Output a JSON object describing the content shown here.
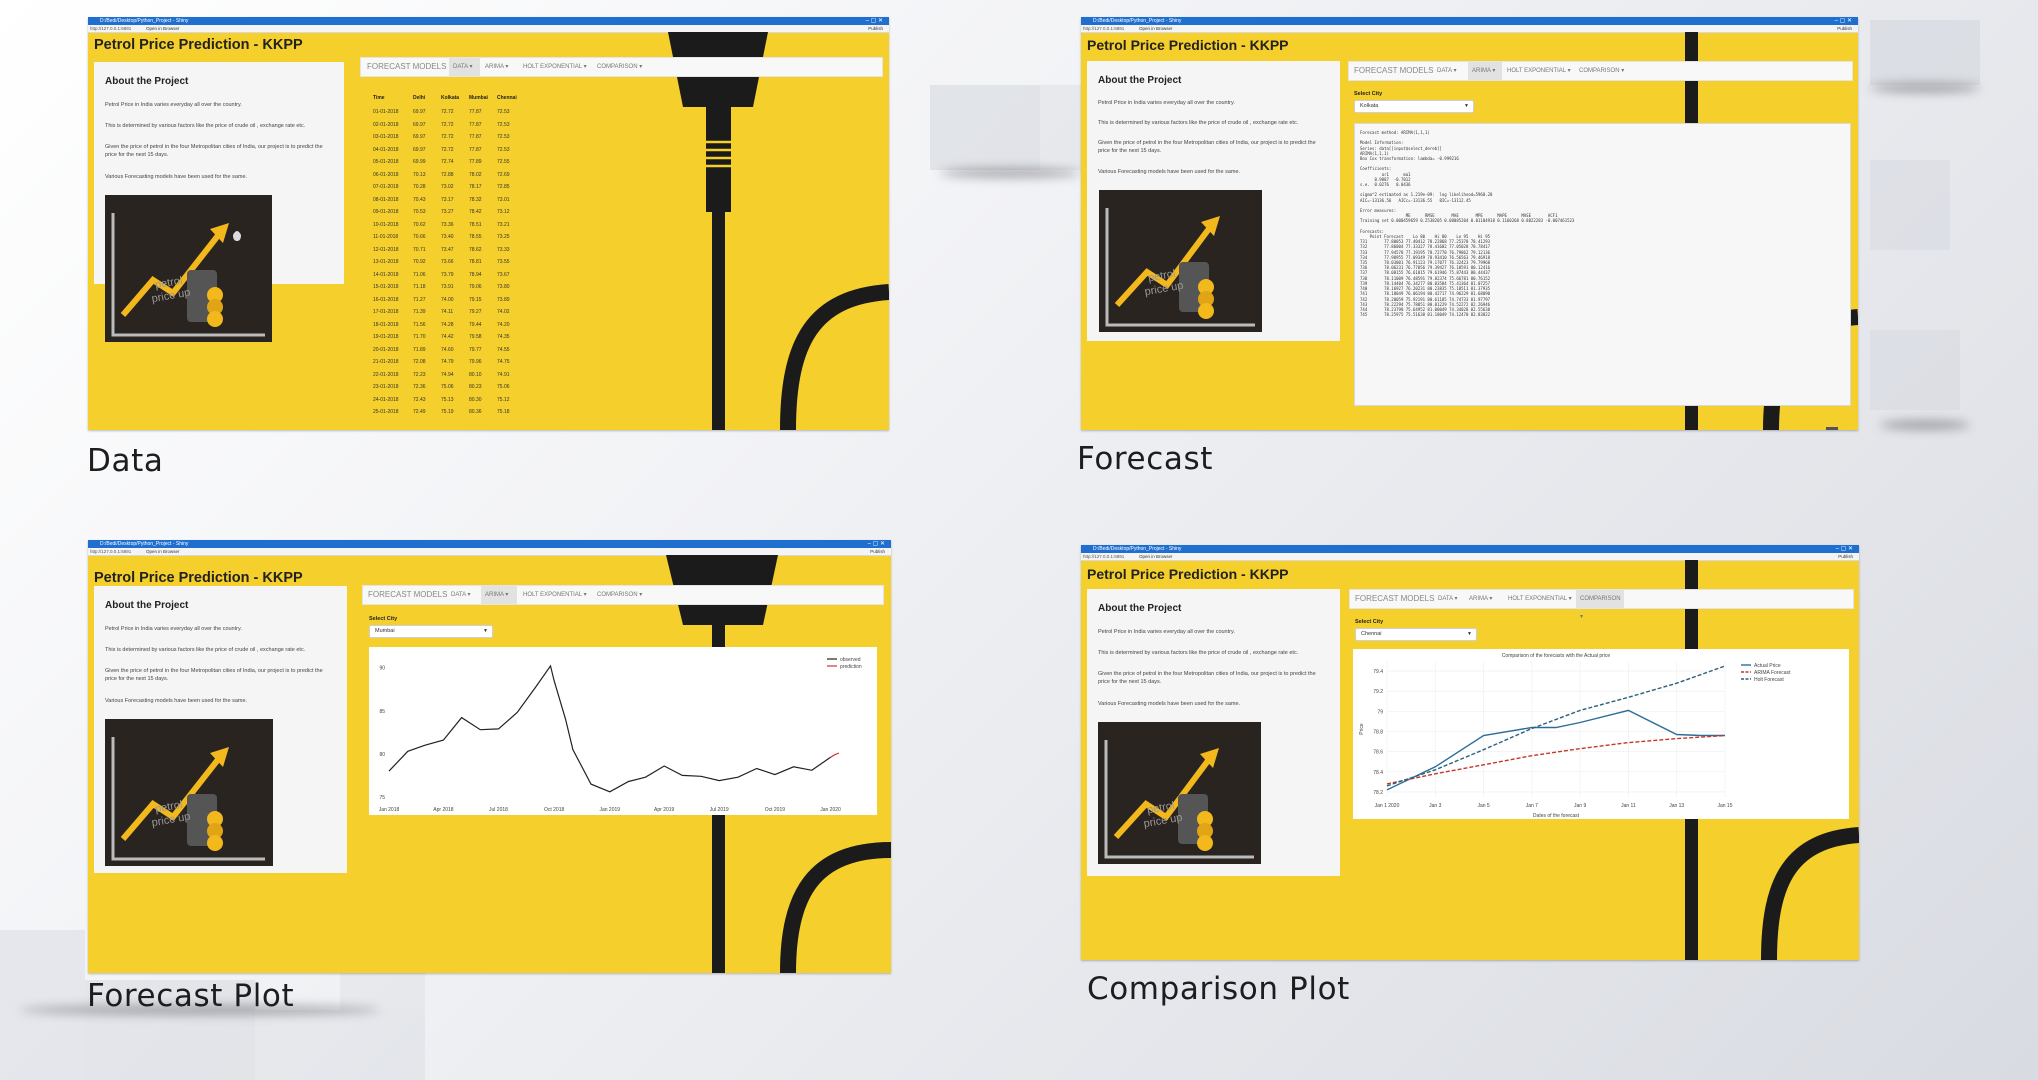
{
  "panels": {
    "data": {
      "caption": "Data",
      "window": {
        "title": "D:/Bedi/Desktop/Python_Project - Shiny",
        "url": "http://127.0.0.1:6891",
        "open_in_browser": "Open in Browser",
        "publish": "Publish",
        "controls": "–  ▢  ✕"
      },
      "app_title": "Petrol Price Prediction - KKPP",
      "about": {
        "heading": "About the Project",
        "p1": "Petrol Price in India varies everyday all over the country.",
        "p2": "This is determined by various factors like the price of crude oil , exchange rate etc.",
        "p3": "Given the price of petrol in the four Metropolitan cities of India, our project is to predict the price for the next 15 days.",
        "p4": "Various Forecasting models have been used for the same."
      },
      "image_text": "petrol price up",
      "nav": {
        "brand": "FORECAST MODELS",
        "tabs": [
          "DATA ▾",
          "ARIMA ▾",
          "HOLT EXPONENTIAL ▾",
          "COMPARISON ▾"
        ],
        "active": 0
      },
      "table": {
        "columns": [
          "Time",
          "Delhi",
          "Kolkata",
          "Mumbai",
          "Chennai"
        ],
        "rows": [
          [
            "01-01-2018",
            "69.97",
            "72.72",
            "77.87",
            "72.53"
          ],
          [
            "02-01-2018",
            "69.97",
            "72.72",
            "77.87",
            "72.53"
          ],
          [
            "03-01-2018",
            "69.97",
            "72.72",
            "77.87",
            "72.53"
          ],
          [
            "04-01-2018",
            "69.97",
            "72.72",
            "77.87",
            "72.53"
          ],
          [
            "05-01-2018",
            "69.99",
            "72.74",
            "77.89",
            "72.55"
          ],
          [
            "06-01-2018",
            "70.13",
            "72.88",
            "78.02",
            "72.69"
          ],
          [
            "07-01-2018",
            "70.28",
            "73.02",
            "78.17",
            "72.85"
          ],
          [
            "08-01-2018",
            "70.43",
            "73.17",
            "78.32",
            "73.01"
          ],
          [
            "09-01-2018",
            "70.53",
            "73.27",
            "78.42",
            "73.12"
          ],
          [
            "10-01-2018",
            "70.62",
            "73.36",
            "78.51",
            "73.21"
          ],
          [
            "11-01-2018",
            "70.66",
            "73.40",
            "78.55",
            "73.25"
          ],
          [
            "12-01-2018",
            "70.71",
            "73.47",
            "78.62",
            "73.33"
          ],
          [
            "13-01-2018",
            "70.92",
            "73.66",
            "78.81",
            "73.55"
          ],
          [
            "14-01-2018",
            "71.06",
            "73.79",
            "78.94",
            "73.67"
          ],
          [
            "15-01-2018",
            "71.18",
            "73.91",
            "79.06",
            "73.80"
          ],
          [
            "16-01-2018",
            "71.27",
            "74.00",
            "79.15",
            "73.89"
          ],
          [
            "17-01-2018",
            "71.39",
            "74.11",
            "79.27",
            "74.02"
          ],
          [
            "18-01-2018",
            "71.56",
            "74.28",
            "79.44",
            "74.20"
          ],
          [
            "19-01-2018",
            "71.70",
            "74.42",
            "79.58",
            "74.35"
          ],
          [
            "20-01-2018",
            "71.89",
            "74.60",
            "79.77",
            "74.55"
          ],
          [
            "21-01-2018",
            "72.08",
            "74.79",
            "79.96",
            "74.75"
          ],
          [
            "22-01-2018",
            "72.23",
            "74.94",
            "80.10",
            "74.91"
          ],
          [
            "23-01-2018",
            "72.36",
            "75.06",
            "80.23",
            "75.06"
          ],
          [
            "24-01-2018",
            "72.43",
            "75.13",
            "80.30",
            "75.12"
          ],
          [
            "25-01-2018",
            "72.49",
            "75.19",
            "80.36",
            "75.18"
          ]
        ]
      }
    },
    "forecast": {
      "caption": "Forecast",
      "window": {
        "title": "D:/Bedi/Desktop/Python_Project - Shiny",
        "url": "http://127.0.0.1:6891",
        "open_in_browser": "Open in Browser",
        "publish": "Publish",
        "controls": "–  ▢  ✕"
      },
      "app_title": "Petrol Price Prediction - KKPP",
      "about": {
        "heading": "About the Project",
        "p1": "Petrol Price in India varies everyday all over the country.",
        "p2": "This is determined by various factors like the price of crude oil , exchange rate etc.",
        "p3": "Given the price of petrol in the four Metropolitan cities of India, our project is to predict the price for the next 15 days.",
        "p4": "Various Forecasting models have been used for the same."
      },
      "image_text": "petrol price up",
      "nav": {
        "brand": "FORECAST MODELS",
        "tabs": [
          "DATA ▾",
          "ARIMA ▾",
          "HOLT EXPONENTIAL ▾",
          "COMPARISON ▾"
        ],
        "active": 1
      },
      "select_label": "Select City",
      "select_value": "Kolkata",
      "console_output": "Forecast method: ARIMA(1,1,1)\n\nModel Information:\nSeries: data[[input$select_dereb]]\nARIMA(1,1,1)\nBox Cox transformation: lambda= -0.999216\n\nCoefficients:\n         ar1      ma1\n      0.9887  -0.7012\ns.e.  0.0276   0.0436\n\nsigma^2 estimated as 1.219e-09:  log likelihood=5960.28\nAIC=-13136.56   AICc=-13136.55   BIC=-13112.45\n\nError measures:\n                   ME      RMSE       MAE       MPE      MAPE      MASE       ACF1\nTraining set 0.000459659 0.2538205 0.08085204 0.01104918 0.1160268 0.8822283 -0.007461523\n\nForecasts:\n    Point Forecast    Lo 80    Hi 80    Lo 95    Hi 95\n731       77.80053 77.40412 78.22868 77.25378 78.41293\n732       77.86004 77.33327 78.41682 77.05028 78.78417\n733       77.94578 77.19195 78.72770 76.79862 79.12136\n734       77.98955 77.09349 78.93410 76.56563 79.46918\n735       78.03001 76.91123 79.17077 76.32423 79.79968\n736       78.06231 76.77056 79.39427 76.10591 80.12416\n737       78.08155 76.61815 79.61946 75.87443 80.44437\n738       78.11009 76.48591 79.82374 75.66781 80.76152\n739       78.14404 76.34277 80.03584 75.41364 81.07257\n740       78.16927 76.20231 80.23835 75.18511 81.37935\n741       78.18049 76.06194 80.42717 74.96229 81.68090\n742       78.20059 75.92191 80.61185 74.74733 81.97797\n743       78.22294 75.78851 80.81229 74.52272 82.26946\n744       78.23798 75.64952 81.00049 74.34028 82.55638\n745       78.25975 75.51638 81.18049 74.12470 82.83822"
    },
    "forecast_plot": {
      "caption": "Forecast Plot",
      "window": {
        "title": "D:/Bedi/Desktop/Python_Project - Shiny",
        "url": "http://127.0.0.1:6891",
        "open_in_browser": "Open in Browser",
        "publish": "Publish",
        "controls": "–  ▢  ✕"
      },
      "app_title": "Petrol Price Prediction - KKPP",
      "about": {
        "heading": "About the Project",
        "p1": "Petrol Price in India varies everyday all over the country.",
        "p2": "This is determined by various factors like the price of crude oil , exchange rate etc.",
        "p3": "Given the price of petrol in the four Metropolitan cities of India, our project is to predict the price for the next 15 days.",
        "p4": "Various Forecasting models have been used for the same."
      },
      "image_text": "petrol price up",
      "nav": {
        "brand": "FORECAST MODELS",
        "tabs": [
          "DATA ▾",
          "ARIMA ▾",
          "HOLT EXPONENTIAL ▾",
          "COMPARISON ▾"
        ],
        "active": 1
      },
      "select_label": "Select City",
      "select_value": "Mumbai"
    },
    "comparison_plot": {
      "caption": "Comparison Plot",
      "window": {
        "title": "D:/Bedi/Desktop/Python_Project - Shiny",
        "url": "http://127.0.0.1:6891",
        "open_in_browser": "Open in Browser",
        "publish": "Publish",
        "controls": "–  ▢  ✕"
      },
      "app_title": "Petrol Price Prediction - KKPP",
      "about": {
        "heading": "About the Project",
        "p1": "Petrol Price in India varies everyday all over the country.",
        "p2": "This is determined by various factors like the price of crude oil , exchange rate etc.",
        "p3": "Given the price of petrol in the four Metropolitan cities of India, our project is to predict the price for the next 15 days.",
        "p4": "Various Forecasting models have been used for the same."
      },
      "image_text": "petrol price up",
      "nav": {
        "brand": "FORECAST MODELS",
        "tabs": [
          "DATA ▾",
          "ARIMA ▾",
          "HOLT EXPONENTIAL ▾",
          "COMPARISON ▾"
        ],
        "active": 3
      },
      "select_label": "Select City",
      "select_value": "Chennai"
    }
  },
  "chart_data": [
    {
      "type": "line",
      "xlabel": "",
      "ylabel": "",
      "x_ticks": [
        "Jan 2018",
        "Apr 2018",
        "Jul 2018",
        "Oct 2018",
        "Jan 2019",
        "Apr 2019",
        "Jul 2019",
        "Oct 2019",
        "Jan 2020"
      ],
      "y_ticks": [
        75,
        80,
        85,
        90
      ],
      "ylim": [
        75,
        91
      ],
      "legend_position": "top-right",
      "series": [
        {
          "name": "observed",
          "color": "#222222",
          "x": [
            "2018-01",
            "2018-02",
            "2018-03",
            "2018-04",
            "2018-05",
            "2018-06",
            "2018-07",
            "2018-08",
            "2018-09",
            "2018-09-25",
            "2018-10",
            "2018-10-20",
            "2018-11",
            "2018-12",
            "2019-01",
            "2019-02",
            "2019-03",
            "2019-04",
            "2019-05",
            "2019-06",
            "2019-07",
            "2019-08",
            "2019-09",
            "2019-10",
            "2019-11",
            "2019-12",
            "2020-01"
          ],
          "values": [
            78.0,
            80.3,
            81.0,
            81.6,
            84.2,
            82.8,
            82.9,
            84.8,
            87.8,
            90.2,
            88.5,
            84.0,
            80.5,
            76.5,
            75.6,
            76.8,
            77.3,
            78.6,
            77.5,
            77.4,
            76.9,
            77.3,
            78.3,
            77.6,
            78.5,
            78.1,
            79.6
          ]
        },
        {
          "name": "prediction",
          "color": "#d63232",
          "x": [
            "2020-01",
            "2020-01-08",
            "2020-01-15"
          ],
          "values": [
            79.6,
            79.9,
            80.1
          ]
        }
      ]
    },
    {
      "type": "line",
      "title": "Comparison of the forecasts with the Actual price",
      "xlabel": "Dates of the forecast",
      "ylabel": "Price",
      "x_ticks": [
        "Jan 1 2020",
        "Jan 3",
        "Jan 5",
        "Jan 7",
        "Jan 9",
        "Jan 11",
        "Jan 13",
        "Jan 15"
      ],
      "y_ticks": [
        78.2,
        78.4,
        78.6,
        78.8,
        79,
        79.2,
        79.4
      ],
      "ylim": [
        78.15,
        79.5
      ],
      "legend_position": "top-right",
      "series": [
        {
          "name": "Actual Price",
          "color": "#2c6e9b",
          "dash": false,
          "x": [
            1,
            3,
            5,
            7,
            8,
            9,
            11,
            13,
            14,
            15
          ],
          "values": [
            78.22,
            78.45,
            78.76,
            78.84,
            78.84,
            78.89,
            79.01,
            78.77,
            78.76,
            78.76
          ]
        },
        {
          "name": "ARIMA Forecast",
          "color": "#c0392b",
          "dash": true,
          "x": [
            1,
            3,
            5,
            7,
            9,
            11,
            13,
            15
          ],
          "values": [
            78.28,
            78.38,
            78.47,
            78.56,
            78.63,
            78.69,
            78.73,
            78.76
          ]
        },
        {
          "name": "Holt Forecast",
          "color": "#2c5f7c",
          "dash": true,
          "x": [
            1,
            3,
            5,
            7,
            9,
            11,
            13,
            15
          ],
          "values": [
            78.26,
            78.42,
            78.62,
            78.83,
            79.01,
            79.14,
            79.28,
            79.45
          ]
        }
      ]
    }
  ]
}
